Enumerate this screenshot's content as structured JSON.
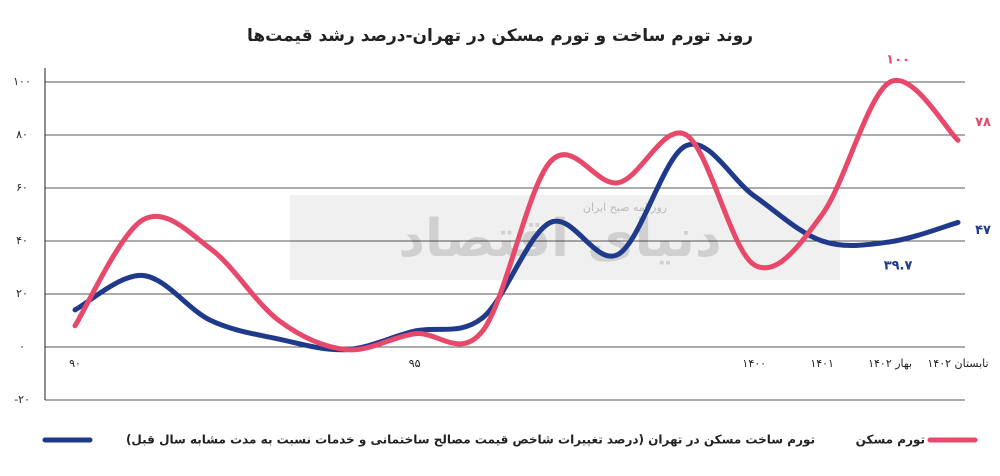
{
  "chart_data": {
    "type": "line",
    "title": "روند تورم ساخت و تورم مسکن در تهران-درصد رشد قیمت‌ها",
    "watermark": {
      "text": "دنیای اقتصاد",
      "subtext": "روزنامه صبح ایران"
    },
    "categories": [
      "۹۰",
      null,
      null,
      null,
      null,
      "۹۵",
      null,
      null,
      null,
      null,
      "۱۴۰۰",
      "۱۴۰۱",
      "بهار ۱۴۰۲",
      "تابستان ۱۴۰۲"
    ],
    "series": [
      {
        "name": "تورم ساخت مسکن در تهران (درصد تغییرات شاخص قیمت مصالح ساختمانی و خدمات نسبت به مدت مشابه سال قبل)",
        "color": "#1f3a8a",
        "values": [
          14,
          27,
          10,
          3,
          -1,
          6,
          11,
          47,
          35,
          76,
          57,
          40,
          39.7,
          47
        ],
        "value_labels": [
          null,
          null,
          null,
          null,
          null,
          null,
          null,
          null,
          null,
          null,
          null,
          null,
          "۳۹.۷",
          "۴۷"
        ]
      },
      {
        "name": "تورم مسکن",
        "color": "#e8486a",
        "values": [
          8,
          48,
          37,
          10,
          -1,
          5,
          6,
          70,
          62,
          80,
          31,
          50,
          100,
          78
        ],
        "value_labels": [
          null,
          null,
          null,
          null,
          null,
          null,
          null,
          null,
          null,
          null,
          null,
          null,
          "۱۰۰",
          "۷۸"
        ]
      }
    ],
    "ylim": [
      -20,
      100
    ],
    "yticks": [
      {
        "value": -20,
        "label": "-۲۰"
      },
      {
        "value": 0,
        "label": "۰"
      },
      {
        "value": 20,
        "label": "۲۰"
      },
      {
        "value": 40,
        "label": "۴۰"
      },
      {
        "value": 60,
        "label": "۶۰"
      },
      {
        "value": 80,
        "label": "۸۰"
      },
      {
        "value": 100,
        "label": "۱۰۰"
      }
    ],
    "grid": true
  }
}
